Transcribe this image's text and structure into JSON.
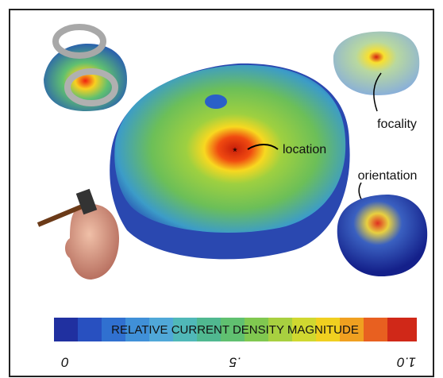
{
  "annotations": {
    "location": "location",
    "focality": "focality",
    "orientation": "orientation"
  },
  "colorbar": {
    "title": "RELATIVE CURRENT DENSITY MAGNITUDE",
    "ticks": [
      "0",
      ".5",
      "1.0"
    ]
  }
}
